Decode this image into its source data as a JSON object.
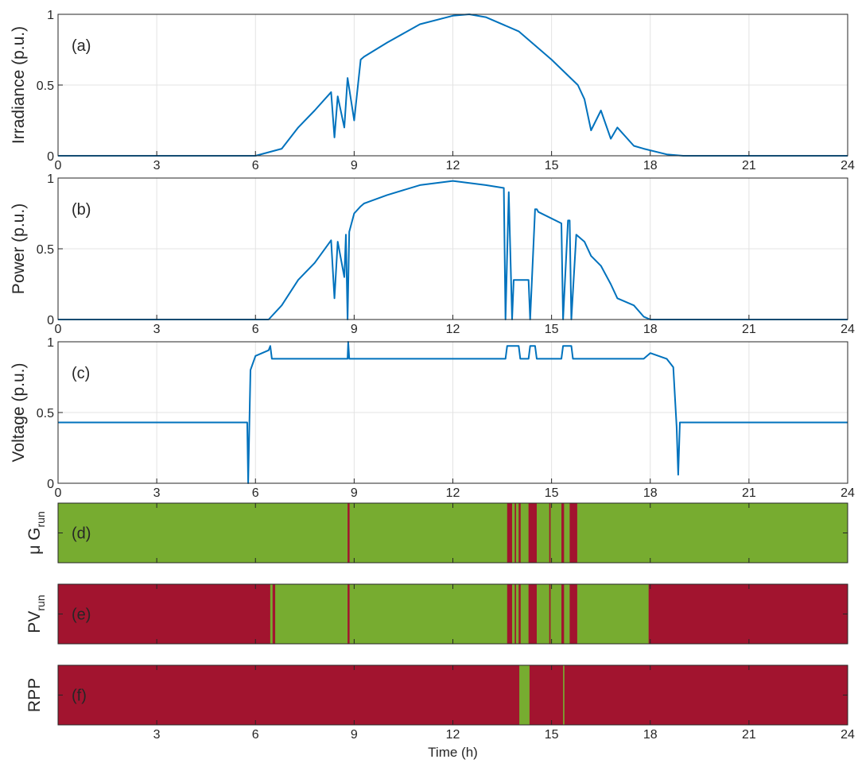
{
  "chart_data": [
    {
      "type": "line",
      "panel": "(a)",
      "ylabel": "Irradiance (p.u.)",
      "xlim": [
        0,
        24
      ],
      "ylim": [
        0,
        1
      ],
      "xticks": [
        0,
        3,
        6,
        9,
        12,
        15,
        18,
        21,
        24
      ],
      "yticks": [
        0,
        0.5,
        1
      ],
      "grid": true,
      "color": "#0072BD",
      "x": [
        0,
        6.0,
        6.8,
        7.3,
        7.8,
        8.3,
        8.4,
        8.5,
        8.7,
        8.8,
        9.0,
        9.2,
        9.3,
        10.0,
        11.0,
        12.0,
        12.5,
        13.0,
        14.0,
        15.0,
        15.8,
        16.0,
        16.2,
        16.5,
        16.8,
        17.0,
        17.5,
        17.8,
        18.5,
        19.0,
        24
      ],
      "y": [
        0,
        0,
        0.05,
        0.2,
        0.32,
        0.45,
        0.13,
        0.42,
        0.2,
        0.55,
        0.25,
        0.68,
        0.7,
        0.8,
        0.93,
        0.99,
        1.0,
        0.98,
        0.88,
        0.68,
        0.5,
        0.4,
        0.18,
        0.32,
        0.12,
        0.2,
        0.07,
        0.05,
        0.01,
        0,
        0
      ]
    },
    {
      "type": "line",
      "panel": "(b)",
      "ylabel": "Power (p.u.)",
      "xlim": [
        0,
        24
      ],
      "ylim": [
        0,
        1
      ],
      "xticks": [
        0,
        3,
        6,
        9,
        12,
        15,
        18,
        21,
        24
      ],
      "yticks": [
        0,
        0.5,
        1
      ],
      "grid": true,
      "color": "#0072BD",
      "x": [
        0,
        6.4,
        6.8,
        7.3,
        7.8,
        8.3,
        8.4,
        8.5,
        8.7,
        8.75,
        8.8,
        8.85,
        9.0,
        9.2,
        9.3,
        10.0,
        11.0,
        12.0,
        13.0,
        13.55,
        13.6,
        13.7,
        13.8,
        13.85,
        14.0,
        14.3,
        14.35,
        14.5,
        14.55,
        14.6,
        15.3,
        15.35,
        15.5,
        15.55,
        15.6,
        15.75,
        16.0,
        16.2,
        16.5,
        16.8,
        17.0,
        17.5,
        17.8,
        18,
        24
      ],
      "y": [
        0,
        0,
        0.1,
        0.28,
        0.4,
        0.56,
        0.15,
        0.55,
        0.3,
        0.6,
        0,
        0.62,
        0.75,
        0.8,
        0.82,
        0.88,
        0.95,
        0.98,
        0.95,
        0.93,
        0,
        0.9,
        0,
        0.28,
        0.28,
        0.28,
        0,
        0.78,
        0.78,
        0.76,
        0.68,
        0,
        0.7,
        0.7,
        0,
        0.6,
        0.55,
        0.45,
        0.38,
        0.25,
        0.15,
        0.1,
        0.02,
        0,
        0
      ]
    },
    {
      "type": "line",
      "panel": "(c)",
      "ylabel": "Voltage (p.u.)",
      "xlim": [
        0,
        24
      ],
      "ylim": [
        0,
        1
      ],
      "xticks": [
        0,
        3,
        6,
        9,
        12,
        15,
        18,
        21,
        24
      ],
      "yticks": [
        0,
        0.5,
        1
      ],
      "grid": true,
      "color": "#0072BD",
      "x": [
        0,
        5.75,
        5.78,
        5.85,
        6.0,
        6.4,
        6.45,
        6.5,
        8.8,
        8.82,
        8.85,
        13.6,
        13.65,
        14.0,
        14.05,
        14.3,
        14.35,
        14.5,
        14.55,
        15.3,
        15.35,
        15.6,
        15.65,
        17.8,
        18.0,
        18.5,
        18.7,
        18.8,
        18.85,
        18.9,
        24
      ],
      "y": [
        0.43,
        0.43,
        0,
        0.8,
        0.9,
        0.94,
        0.97,
        0.88,
        0.88,
        1.0,
        0.88,
        0.88,
        0.97,
        0.97,
        0.88,
        0.88,
        0.97,
        0.97,
        0.88,
        0.88,
        0.97,
        0.97,
        0.88,
        0.88,
        0.92,
        0.88,
        0.82,
        0.4,
        0.06,
        0.43,
        0.43
      ]
    },
    {
      "type": "area",
      "panel": "(d)",
      "ylabel_main": "μ G",
      "ylabel_sub": "run",
      "xlim": [
        0,
        24
      ],
      "colors": {
        "on": "#77AC30",
        "off": "#A2142F"
      },
      "base": "on",
      "intervals": [
        [
          8.8,
          8.86
        ],
        [
          13.65,
          13.8
        ],
        [
          13.88,
          13.92
        ],
        [
          14.0,
          14.06
        ],
        [
          14.3,
          14.55
        ],
        [
          14.93,
          14.97
        ],
        [
          15.3,
          15.38
        ],
        [
          15.55,
          15.78
        ]
      ]
    },
    {
      "type": "area",
      "panel": "(e)",
      "ylabel_main": "PV",
      "ylabel_sub": "run",
      "xlim": [
        0,
        24
      ],
      "colors": {
        "on": "#77AC30",
        "off": "#A2142F"
      },
      "base": "off",
      "intervals": [
        [
          6.45,
          6.52
        ],
        [
          6.6,
          8.8
        ],
        [
          8.86,
          13.65
        ],
        [
          13.8,
          13.88
        ],
        [
          13.92,
          14.0
        ],
        [
          14.06,
          14.3
        ],
        [
          14.55,
          14.93
        ],
        [
          14.97,
          15.3
        ],
        [
          15.38,
          15.55
        ],
        [
          15.78,
          17.95
        ]
      ]
    },
    {
      "type": "area",
      "panel": "(f)",
      "ylabel_main": "RPP",
      "xlabel": "Time (h)",
      "xlim": [
        0,
        24
      ],
      "xticks": [
        3,
        6,
        9,
        12,
        15,
        18,
        21,
        24
      ],
      "colors": {
        "on": "#77AC30",
        "off": "#A2142F"
      },
      "base": "off",
      "intervals": [
        [
          14.02,
          14.33
        ],
        [
          15.35,
          15.39
        ]
      ]
    }
  ]
}
